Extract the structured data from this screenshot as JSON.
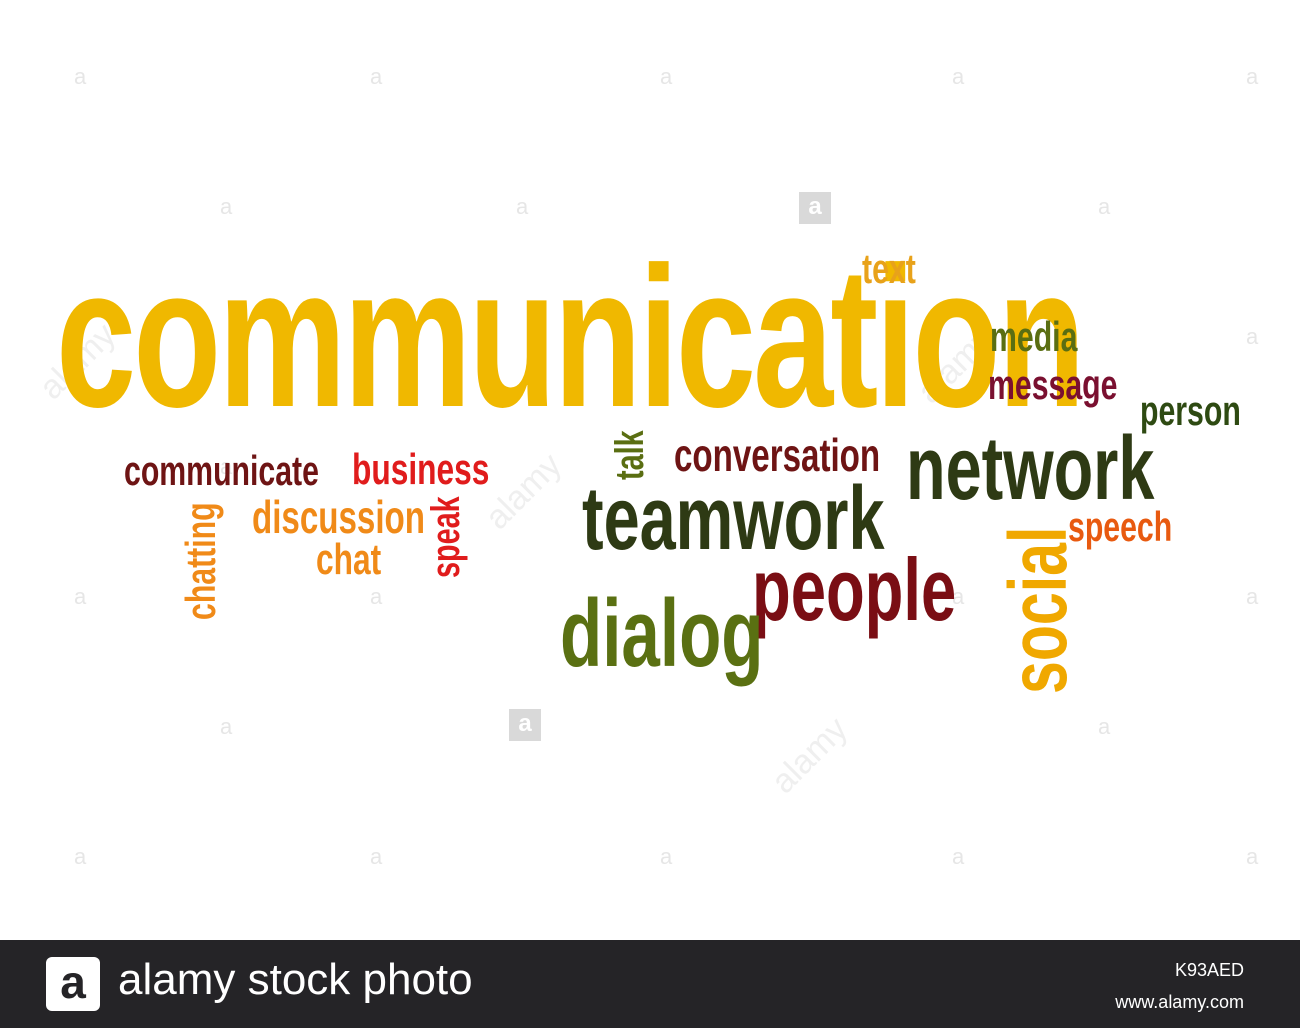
{
  "words": [
    {
      "key": "communication",
      "text": "communication",
      "color": "#f0b800"
    },
    {
      "key": "text",
      "text": "text",
      "color": "#e8a21a"
    },
    {
      "key": "media",
      "text": "media",
      "color": "#5a6e12"
    },
    {
      "key": "message",
      "text": "message",
      "color": "#7a1030"
    },
    {
      "key": "person",
      "text": "person",
      "color": "#2e4a12"
    },
    {
      "key": "network",
      "text": "network",
      "color": "#2e3a14"
    },
    {
      "key": "speech",
      "text": "speech",
      "color": "#e85a10"
    },
    {
      "key": "social",
      "text": "social",
      "color": "#f0a800"
    },
    {
      "key": "conversation",
      "text": "conversation",
      "color": "#6e1414"
    },
    {
      "key": "talk",
      "text": "talk",
      "color": "#5a6e12"
    },
    {
      "key": "teamwork",
      "text": "teamwork",
      "color": "#2e3a14"
    },
    {
      "key": "people",
      "text": "people",
      "color": "#7a0e14"
    },
    {
      "key": "dialog",
      "text": "dialog",
      "color": "#5a7012"
    },
    {
      "key": "communicate",
      "text": "communicate",
      "color": "#6e1414"
    },
    {
      "key": "business",
      "text": "business",
      "color": "#e01c1c"
    },
    {
      "key": "discussion",
      "text": "discussion",
      "color": "#f08a18"
    },
    {
      "key": "chat",
      "text": "chat",
      "color": "#f08a18"
    },
    {
      "key": "speak",
      "text": "speak",
      "color": "#e01c1c"
    },
    {
      "key": "chatting",
      "text": "chatting",
      "color": "#f08a18"
    }
  ],
  "watermark": {
    "letter": "a",
    "diagonal_text": "alamy"
  },
  "footer": {
    "logo_letter": "a",
    "brand": "alamy stock photo",
    "image_id": "K93AED",
    "url": "www.alamy.com"
  }
}
